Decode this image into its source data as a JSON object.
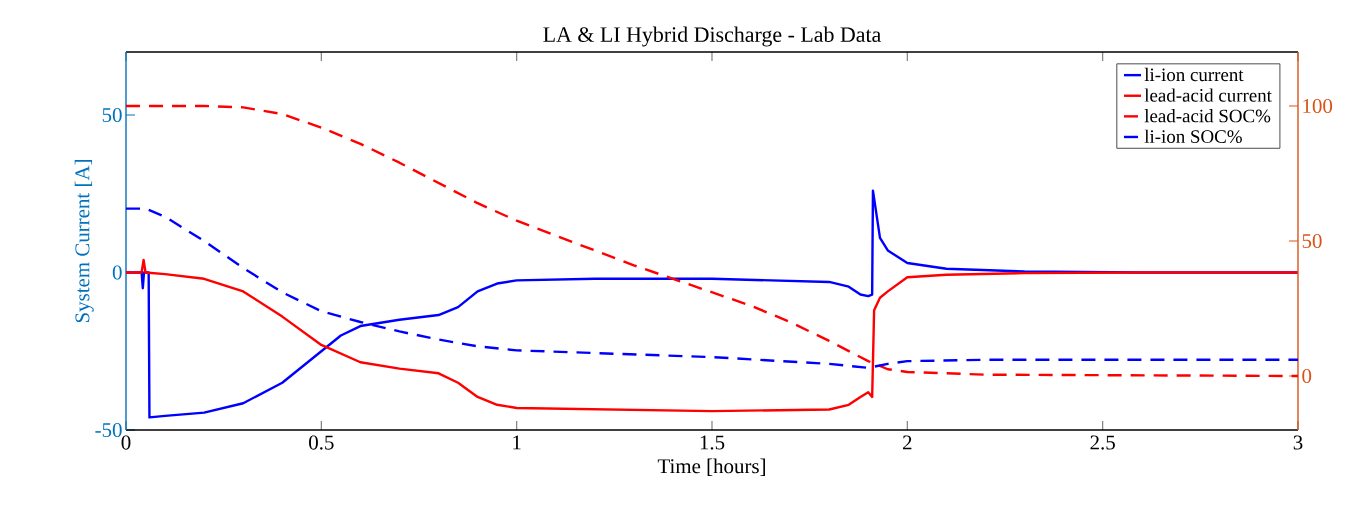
{
  "chart_data": {
    "type": "line",
    "title": "LA & LI Hybrid Discharge - Lab Data",
    "xlabel": "Time [hours]",
    "ylabel": "System Current [A]",
    "xlim": [
      0,
      3
    ],
    "xticks": [
      0,
      0.5,
      1,
      1.5,
      2,
      2.5,
      3
    ],
    "ylim": [
      -50,
      70
    ],
    "yticks": [
      -50,
      0,
      50
    ],
    "y2lim": [
      -20,
      120
    ],
    "y2ticks": [
      0,
      50,
      100
    ],
    "legend": "top right",
    "grid": false,
    "marker": "none",
    "series": [
      {
        "name": "li-ion current",
        "color": "#0000ff",
        "line_style": "solid",
        "x": [
          0,
          0.04,
          0.043,
          0.046,
          0.058,
          0.06,
          0.1,
          0.2,
          0.3,
          0.4,
          0.5,
          0.55,
          0.6,
          0.7,
          0.8,
          0.85,
          0.9,
          0.95,
          1.0,
          1.2,
          1.5,
          1.8,
          1.85,
          1.88,
          1.9,
          1.91,
          1.912,
          1.93,
          1.95,
          2.0,
          2.1,
          2.3,
          2.6,
          3.0
        ],
        "values": [
          0,
          0,
          -5,
          0,
          0,
          -46,
          -45.5,
          -44.5,
          -41.5,
          -35,
          -25,
          -20,
          -17,
          -15,
          -13.5,
          -11,
          -6,
          -3.5,
          -2.5,
          -2,
          -2,
          -3,
          -4.5,
          -7,
          -7.5,
          -7,
          26,
          11,
          7,
          3,
          1.2,
          0.3,
          0,
          0
        ]
      },
      {
        "name": "lead-acid current",
        "color": "#ff0000",
        "line_style": "solid",
        "x": [
          0,
          0.04,
          0.045,
          0.05,
          0.1,
          0.2,
          0.3,
          0.4,
          0.5,
          0.6,
          0.7,
          0.8,
          0.85,
          0.9,
          0.95,
          1.0,
          1.5,
          1.8,
          1.85,
          1.88,
          1.9,
          1.91,
          1.915,
          1.93,
          1.95,
          2.0,
          2.1,
          2.3,
          2.6,
          3.0
        ],
        "values": [
          0,
          0,
          4,
          0,
          -0.5,
          -2,
          -6,
          -14,
          -23,
          -28.5,
          -30.5,
          -32,
          -35,
          -39.5,
          -42,
          -43,
          -44,
          -43.5,
          -42,
          -39.5,
          -38,
          -39.5,
          -12,
          -8,
          -6,
          -1.5,
          -0.7,
          -0.2,
          0,
          0
        ]
      },
      {
        "name": "lead-acid SOC%",
        "color": "#ff0000",
        "line_style": "dashed",
        "axis": "y2",
        "x": [
          0,
          0.2,
          0.3,
          0.4,
          0.5,
          0.6,
          0.7,
          0.8,
          0.9,
          1.0,
          1.1,
          1.2,
          1.3,
          1.4,
          1.5,
          1.6,
          1.7,
          1.8,
          1.9,
          1.95,
          2.0,
          2.2,
          3.0
        ],
        "values": [
          100,
          100,
          99.5,
          97,
          92,
          86,
          79,
          71.5,
          64,
          57.5,
          52,
          46.5,
          41,
          36,
          31,
          26,
          20,
          13,
          5.5,
          2.5,
          1.5,
          0.5,
          0
        ]
      },
      {
        "name": "li-ion SOC%",
        "color": "#0000ff",
        "line_style": "dashed",
        "axis": "y2",
        "x": [
          0,
          0.05,
          0.1,
          0.2,
          0.3,
          0.4,
          0.5,
          0.6,
          0.7,
          0.8,
          0.9,
          1.0,
          1.2,
          1.5,
          1.8,
          1.9,
          1.95,
          2.0,
          2.2,
          3.0
        ],
        "values": [
          62,
          62,
          59,
          50,
          40,
          31,
          24,
          20,
          16.5,
          13.5,
          11,
          9.5,
          8.5,
          7,
          4.5,
          3,
          4.5,
          5.5,
          6,
          6
        ]
      }
    ]
  }
}
